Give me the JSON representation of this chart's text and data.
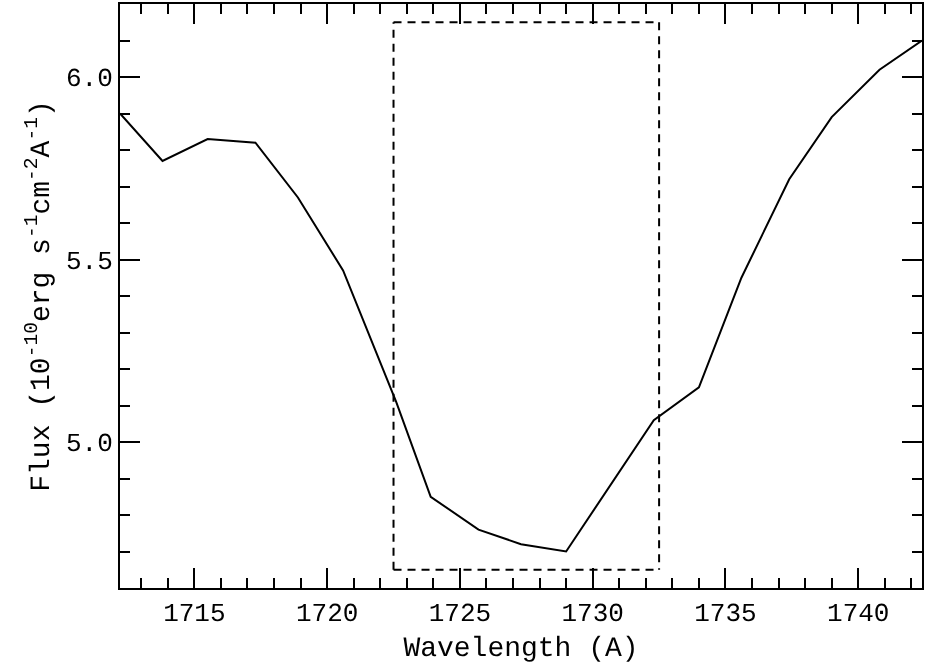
{
  "chart_data": {
    "type": "line",
    "xlabel": "Wavelength (A)",
    "ylabel": "Flux (10$^{-10}$erg s$^{-1}$cm$^{-2}$A$^{-1}$)",
    "series": [
      {
        "color": "#000000",
        "line_style": "solid",
        "x": [
          1712.2,
          1713.8,
          1715.5,
          1717.3,
          1718.9,
          1720.6,
          1722.6,
          1723.9,
          1725.7,
          1727.3,
          1729.0,
          1732.3,
          1734.0,
          1735.6,
          1737.4,
          1739.0,
          1740.8,
          1742.4
        ],
        "values": [
          5.9,
          5.77,
          5.83,
          5.82,
          5.67,
          5.47,
          5.11,
          4.85,
          4.76,
          4.72,
          4.7,
          5.06,
          5.15,
          5.45,
          5.72,
          5.89,
          6.02,
          6.1
        ]
      },
      {
        "color": "#000000",
        "line_style": "dashed",
        "x": [
          1722.5,
          1722.5,
          1732.5,
          1732.5
        ],
        "values": [
          4.65,
          6.15,
          6.15,
          4.65
        ]
      },
      {
        "color": "#000000",
        "line_style": "dashed",
        "x": [
          1722.5,
          1732.5
        ],
        "values": [
          4.65,
          4.65
        ]
      }
    ],
    "xlim": [
      1712.2,
      1742.4
    ],
    "ylim": [
      4.6,
      6.2
    ],
    "xticks": [
      1715,
      1720,
      1725,
      1730,
      1735,
      1740,
      {
        "value": 1713,
        "label": null
      },
      {
        "value": 1714,
        "label": null
      },
      {
        "value": 1716,
        "label": null
      },
      {
        "value": 1717,
        "label": null
      },
      {
        "value": 1718,
        "label": null
      },
      {
        "value": 1719,
        "label": null
      },
      {
        "value": 1721,
        "label": null
      },
      {
        "value": 1722,
        "label": null
      },
      {
        "value": 1723,
        "label": null
      },
      {
        "value": 1724,
        "label": null
      },
      {
        "value": 1726,
        "label": null
      },
      {
        "value": 1727,
        "label": null
      },
      {
        "value": 1728,
        "label": null
      },
      {
        "value": 1729,
        "label": null
      },
      {
        "value": 1731,
        "label": null
      },
      {
        "value": 1732,
        "label": null
      },
      {
        "value": 1733,
        "label": null
      },
      {
        "value": 1734,
        "label": null
      },
      {
        "value": 1736,
        "label": null
      },
      {
        "value": 1737,
        "label": null
      },
      {
        "value": 1738,
        "label": null
      },
      {
        "value": 1739,
        "label": null
      },
      {
        "value": 1741,
        "label": null
      },
      {
        "value": 1742,
        "label": null
      }
    ],
    "yticks": [
      {
        "value": 5.0,
        "label": "5.0"
      },
      {
        "value": 5.5,
        "label": "5.5"
      },
      {
        "value": 6.0,
        "label": "6.0"
      },
      {
        "value": 4.7,
        "label": null
      },
      {
        "value": 4.8,
        "label": null
      },
      {
        "value": 4.9,
        "label": null
      },
      {
        "value": 5.1,
        "label": null
      },
      {
        "value": 5.2,
        "label": null
      },
      {
        "value": 5.3,
        "label": null
      },
      {
        "value": 5.4,
        "label": null
      },
      {
        "value": 5.6,
        "label": null
      },
      {
        "value": 5.7,
        "label": null
      },
      {
        "value": 5.8,
        "label": null
      },
      {
        "value": 5.9,
        "label": null
      },
      {
        "value": 6.1,
        "label": null
      }
    ],
    "marker": "none"
  }
}
